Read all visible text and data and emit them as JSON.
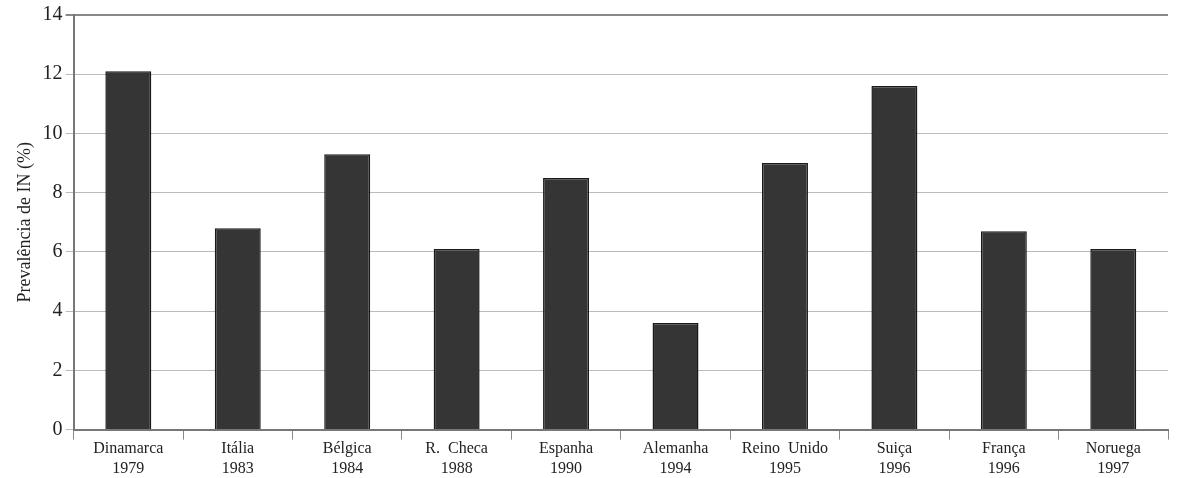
{
  "chart_data": {
    "type": "bar",
    "ylabel": "Prevalência de IN (%)",
    "categories": [
      "Dinamarca\n1979",
      "Itália\n1983",
      "Bélgica\n1984",
      "R.  Checa\n1988",
      "Espanha\n1990",
      "Alemanha\n1994",
      "Reino  Unido\n1995",
      "Suiça\n1996",
      "França\n1996",
      "Noruega\n1997"
    ],
    "values": [
      12.1,
      6.8,
      9.3,
      6.1,
      8.5,
      3.6,
      9.0,
      11.6,
      6.7,
      6.1
    ],
    "color": "#353535",
    "ylim": [
      0,
      14
    ],
    "yticks": [
      0,
      2,
      4,
      6,
      8,
      10,
      12,
      14
    ],
    "grid": "y",
    "legend": false
  }
}
